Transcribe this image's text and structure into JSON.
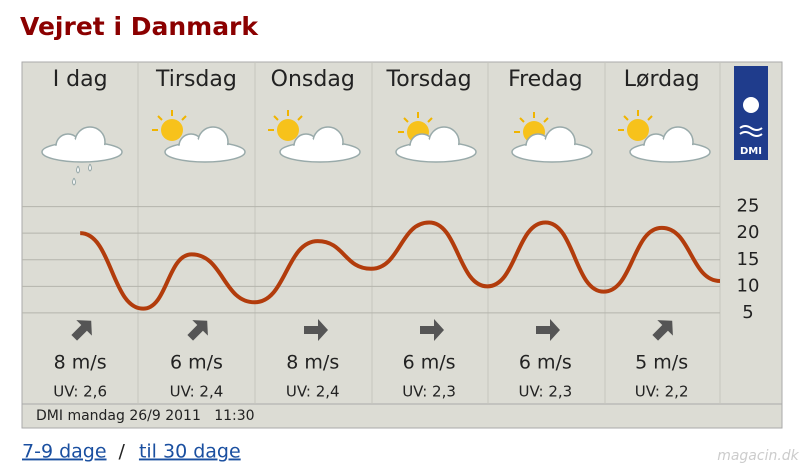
{
  "header": {
    "title": "Vejret i Danmark"
  },
  "logo": "DMI",
  "days": [
    {
      "name": "I dag",
      "wind": "8 m/s",
      "uv": "UV: 2,6"
    },
    {
      "name": "Tirsdag",
      "wind": "6 m/s",
      "uv": "UV: 2,4"
    },
    {
      "name": "Onsdag",
      "wind": "8 m/s",
      "uv": "UV: 2,4"
    },
    {
      "name": "Torsdag",
      "wind": "6 m/s",
      "uv": "UV: 2,3"
    },
    {
      "name": "Fredag",
      "wind": "6 m/s",
      "uv": "UV: 2,3"
    },
    {
      "name": "Lørdag",
      "wind": "5 m/s",
      "uv": "UV: 2,2"
    }
  ],
  "chart_data": {
    "type": "line",
    "x": [
      12,
      25,
      35,
      48,
      61,
      72,
      84,
      96,
      108,
      120,
      132,
      144
    ],
    "series": [
      {
        "color": "#b23c0c",
        "values": [
          20,
          5.8,
          16,
          7,
          18.5,
          13.3,
          22,
          10,
          22,
          9,
          21,
          11
        ]
      }
    ],
    "xlim": [
      0,
      144
    ],
    "ylim": [
      0,
      30
    ],
    "yticks": [
      5,
      10,
      15,
      20,
      25
    ],
    "grid": true
  },
  "footer": {
    "timestamp": "DMI mandag 26/9 2011   11:30"
  },
  "links": {
    "items": [
      "7-9 dage",
      "til 30 dage"
    ],
    "separator": "/"
  },
  "watermark": "magacin.dk"
}
